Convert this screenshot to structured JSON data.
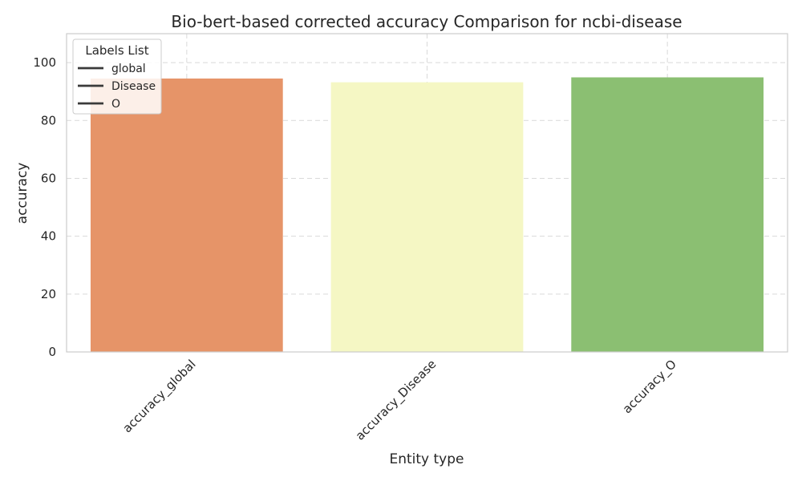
{
  "chart_data": {
    "type": "bar",
    "title": "Bio-bert-based corrected accuracy Comparison for ncbi-disease",
    "xlabel": "Entity type",
    "ylabel": "accuracy",
    "categories": [
      "accuracy_global",
      "accuracy_Disease",
      "accuracy_O"
    ],
    "values": [
      94.5,
      93.2,
      94.9
    ],
    "colors": [
      "#e69468",
      "#f5f7c4",
      "#8bbf72"
    ],
    "ylim": [
      0,
      110
    ],
    "yticks": [
      0,
      20,
      40,
      60,
      80,
      100
    ],
    "grid": true,
    "legend": {
      "title": "Labels List",
      "placement": "top-left",
      "entries": [
        "global",
        "Disease",
        "O"
      ]
    }
  }
}
